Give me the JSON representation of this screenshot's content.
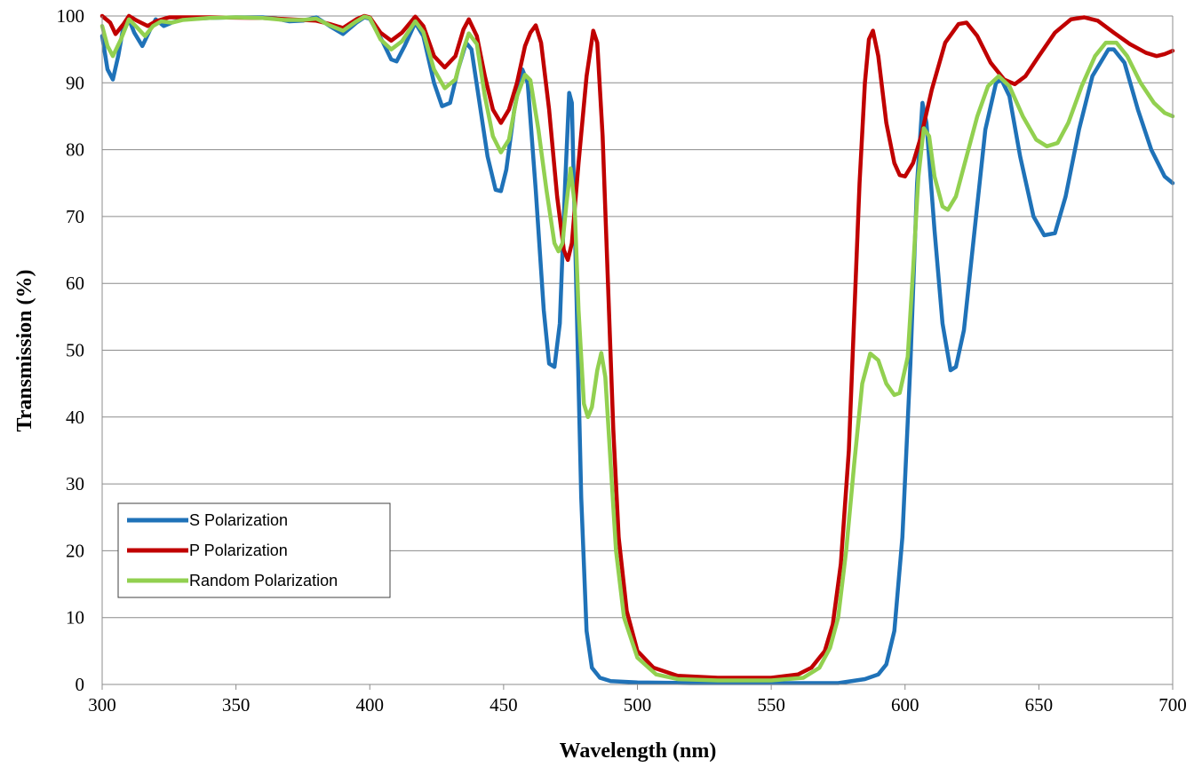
{
  "chart_data": {
    "type": "line",
    "title": "",
    "xlabel": "Wavelength (nm)",
    "ylabel": "Transmission (%)",
    "xlim": [
      300,
      700
    ],
    "ylim": [
      0,
      100
    ],
    "x_ticks": [
      "300",
      "350",
      "400",
      "450",
      "500",
      "550",
      "600",
      "650",
      "700"
    ],
    "y_ticks": [
      "0",
      "10",
      "20",
      "30",
      "40",
      "50",
      "60",
      "70",
      "80",
      "90",
      "100"
    ],
    "grid": "horizontal",
    "legend_position": "lower-left",
    "series": [
      {
        "name": "S Polarization",
        "color": "#1f72b8",
        "points": [
          [
            300,
            97
          ],
          [
            302,
            92
          ],
          [
            304,
            90.5
          ],
          [
            306,
            94
          ],
          [
            308,
            98.5
          ],
          [
            310,
            99.5
          ],
          [
            312,
            97.5
          ],
          [
            315,
            95.5
          ],
          [
            318,
            98
          ],
          [
            320,
            99.5
          ],
          [
            323,
            98.5
          ],
          [
            326,
            99
          ],
          [
            330,
            99.5
          ],
          [
            340,
            99.7
          ],
          [
            350,
            99.8
          ],
          [
            360,
            99.8
          ],
          [
            365,
            99.6
          ],
          [
            370,
            99.2
          ],
          [
            375,
            99.3
          ],
          [
            380,
            99.8
          ],
          [
            385,
            98.5
          ],
          [
            390,
            97.3
          ],
          [
            395,
            99
          ],
          [
            398,
            99.8
          ],
          [
            400,
            99.6
          ],
          [
            405,
            96
          ],
          [
            408,
            93.5
          ],
          [
            410,
            93.2
          ],
          [
            413,
            95.5
          ],
          [
            417,
            99
          ],
          [
            420,
            97
          ],
          [
            424,
            90
          ],
          [
            427,
            86.5
          ],
          [
            430,
            87
          ],
          [
            433,
            92
          ],
          [
            436,
            96
          ],
          [
            438,
            95
          ],
          [
            441,
            87
          ],
          [
            444,
            79
          ],
          [
            447,
            74
          ],
          [
            449,
            73.8
          ],
          [
            451,
            77
          ],
          [
            454,
            86
          ],
          [
            457,
            92
          ],
          [
            459,
            90
          ],
          [
            462,
            74
          ],
          [
            465,
            56
          ],
          [
            467,
            48
          ],
          [
            469,
            47.5
          ],
          [
            471,
            54
          ],
          [
            473,
            75
          ],
          [
            474.5,
            88.5
          ],
          [
            475.5,
            87
          ],
          [
            477,
            62
          ],
          [
            479,
            28
          ],
          [
            481,
            8
          ],
          [
            483,
            2.5
          ],
          [
            486,
            1
          ],
          [
            490,
            0.5
          ],
          [
            500,
            0.3
          ],
          [
            520,
            0.2
          ],
          [
            550,
            0.2
          ],
          [
            575,
            0.2
          ],
          [
            585,
            0.8
          ],
          [
            590,
            1.5
          ],
          [
            593,
            3
          ],
          [
            596,
            8
          ],
          [
            599,
            22
          ],
          [
            602,
            48
          ],
          [
            604.5,
            75
          ],
          [
            606.5,
            87
          ],
          [
            608,
            84
          ],
          [
            611,
            68
          ],
          [
            614,
            54
          ],
          [
            617,
            47
          ],
          [
            619,
            47.5
          ],
          [
            622,
            53
          ],
          [
            626,
            68
          ],
          [
            630,
            83
          ],
          [
            634,
            90
          ],
          [
            636,
            90.5
          ],
          [
            639,
            88
          ],
          [
            643,
            79
          ],
          [
            648,
            70
          ],
          [
            652,
            67.2
          ],
          [
            656,
            67.5
          ],
          [
            660,
            73
          ],
          [
            665,
            83
          ],
          [
            670,
            91
          ],
          [
            676,
            95
          ],
          [
            678,
            95
          ],
          [
            682,
            93
          ],
          [
            687,
            86
          ],
          [
            692,
            80
          ],
          [
            697,
            76
          ],
          [
            700,
            75
          ]
        ]
      },
      {
        "name": "P Polarization",
        "color": "#c00000",
        "points": [
          [
            300,
            100
          ],
          [
            303,
            99
          ],
          [
            305,
            97.3
          ],
          [
            308,
            98.8
          ],
          [
            310,
            100
          ],
          [
            313,
            99.3
          ],
          [
            317,
            98.5
          ],
          [
            320,
            99.2
          ],
          [
            325,
            99.8
          ],
          [
            340,
            99.8
          ],
          [
            360,
            99.7
          ],
          [
            370,
            99.5
          ],
          [
            380,
            99.3
          ],
          [
            385,
            98.8
          ],
          [
            390,
            98.2
          ],
          [
            395,
            99.5
          ],
          [
            398,
            100
          ],
          [
            400,
            99.8
          ],
          [
            404,
            97.5
          ],
          [
            408,
            96.3
          ],
          [
            412,
            97.5
          ],
          [
            417,
            99.9
          ],
          [
            420,
            98.5
          ],
          [
            424,
            94
          ],
          [
            428,
            92.3
          ],
          [
            432,
            94
          ],
          [
            435,
            98
          ],
          [
            437,
            99.5
          ],
          [
            440,
            97
          ],
          [
            443,
            91
          ],
          [
            446,
            86
          ],
          [
            449,
            84
          ],
          [
            452,
            86
          ],
          [
            455,
            90
          ],
          [
            458,
            95.5
          ],
          [
            460,
            97.5
          ],
          [
            462,
            98.6
          ],
          [
            464,
            96
          ],
          [
            467,
            86
          ],
          [
            470,
            73
          ],
          [
            472.5,
            65
          ],
          [
            474,
            63.5
          ],
          [
            475.5,
            66
          ],
          [
            478,
            78
          ],
          [
            481,
            91
          ],
          [
            483.5,
            97.8
          ],
          [
            485,
            96
          ],
          [
            487,
            82
          ],
          [
            489,
            60
          ],
          [
            491,
            38
          ],
          [
            493,
            22
          ],
          [
            496,
            11
          ],
          [
            500,
            5
          ],
          [
            506,
            2.5
          ],
          [
            515,
            1.3
          ],
          [
            530,
            1
          ],
          [
            550,
            1
          ],
          [
            560,
            1.5
          ],
          [
            565,
            2.5
          ],
          [
            570,
            5
          ],
          [
            573,
            9
          ],
          [
            576,
            18
          ],
          [
            579,
            35
          ],
          [
            581,
            55
          ],
          [
            583,
            75
          ],
          [
            585,
            90
          ],
          [
            586.5,
            96.5
          ],
          [
            588,
            97.8
          ],
          [
            590,
            94
          ],
          [
            593,
            84
          ],
          [
            596,
            78
          ],
          [
            598,
            76.2
          ],
          [
            600,
            76
          ],
          [
            603,
            78
          ],
          [
            606,
            82
          ],
          [
            610,
            89
          ],
          [
            615,
            96
          ],
          [
            620,
            98.8
          ],
          [
            623,
            99
          ],
          [
            627,
            97
          ],
          [
            632,
            93
          ],
          [
            637,
            90.5
          ],
          [
            641,
            89.8
          ],
          [
            645,
            91
          ],
          [
            650,
            94
          ],
          [
            656,
            97.5
          ],
          [
            662,
            99.5
          ],
          [
            667,
            99.8
          ],
          [
            672,
            99.3
          ],
          [
            678,
            97.5
          ],
          [
            684,
            95.8
          ],
          [
            690,
            94.5
          ],
          [
            694,
            94
          ],
          [
            697,
            94.3
          ],
          [
            700,
            94.8
          ]
        ]
      },
      {
        "name": "Random Polarization",
        "color": "#92d050",
        "points": [
          [
            300,
            98.5
          ],
          [
            302,
            95.5
          ],
          [
            304,
            94
          ],
          [
            307,
            96.5
          ],
          [
            310,
            99.5
          ],
          [
            313,
            98.3
          ],
          [
            316,
            97
          ],
          [
            319,
            98.5
          ],
          [
            322,
            99.2
          ],
          [
            326,
            99
          ],
          [
            330,
            99.4
          ],
          [
            340,
            99.7
          ],
          [
            350,
            99.8
          ],
          [
            360,
            99.7
          ],
          [
            368,
            99.4
          ],
          [
            375,
            99.4
          ],
          [
            380,
            99.6
          ],
          [
            385,
            98.6
          ],
          [
            390,
            97.8
          ],
          [
            395,
            99.2
          ],
          [
            398,
            99.9
          ],
          [
            400,
            99.7
          ],
          [
            404,
            96.5
          ],
          [
            408,
            95
          ],
          [
            412,
            96.2
          ],
          [
            417,
            99.2
          ],
          [
            420,
            97.6
          ],
          [
            424,
            92
          ],
          [
            428,
            89.2
          ],
          [
            432,
            90.5
          ],
          [
            435,
            95
          ],
          [
            437,
            97.4
          ],
          [
            440,
            95.8
          ],
          [
            443,
            88
          ],
          [
            446,
            82
          ],
          [
            449,
            79.6
          ],
          [
            452,
            81.5
          ],
          [
            455,
            88
          ],
          [
            458,
            91.2
          ],
          [
            460,
            90.4
          ],
          [
            463,
            83
          ],
          [
            466,
            74
          ],
          [
            469,
            66
          ],
          [
            470.5,
            64.8
          ],
          [
            472,
            66
          ],
          [
            473.5,
            72
          ],
          [
            475,
            77.2
          ],
          [
            476.5,
            72
          ],
          [
            478,
            56
          ],
          [
            480,
            42
          ],
          [
            481.5,
            40
          ],
          [
            483,
            41.5
          ],
          [
            485,
            47
          ],
          [
            486.5,
            49.6
          ],
          [
            488,
            46
          ],
          [
            490,
            33
          ],
          [
            492,
            20
          ],
          [
            495,
            10
          ],
          [
            500,
            4
          ],
          [
            507,
            1.5
          ],
          [
            515,
            0.8
          ],
          [
            530,
            0.6
          ],
          [
            550,
            0.6
          ],
          [
            562,
            1
          ],
          [
            568,
            2.5
          ],
          [
            572,
            5.5
          ],
          [
            575,
            10
          ],
          [
            578,
            20
          ],
          [
            581,
            33
          ],
          [
            584,
            45
          ],
          [
            587,
            49.5
          ],
          [
            590,
            48.5
          ],
          [
            593,
            45
          ],
          [
            596,
            43.3
          ],
          [
            598,
            43.6
          ],
          [
            601,
            49
          ],
          [
            603,
            62
          ],
          [
            605,
            76
          ],
          [
            607,
            83.2
          ],
          [
            609,
            82
          ],
          [
            611,
            76
          ],
          [
            614,
            71.5
          ],
          [
            616,
            71
          ],
          [
            619,
            73
          ],
          [
            623,
            79
          ],
          [
            627,
            85
          ],
          [
            631,
            89.5
          ],
          [
            635,
            91
          ],
          [
            639,
            89.5
          ],
          [
            644,
            85
          ],
          [
            649,
            81.5
          ],
          [
            653,
            80.5
          ],
          [
            657,
            81
          ],
          [
            661,
            84
          ],
          [
            666,
            89.5
          ],
          [
            671,
            94
          ],
          [
            675,
            96
          ],
          [
            679,
            96
          ],
          [
            683,
            94
          ],
          [
            688,
            90
          ],
          [
            693,
            87
          ],
          [
            697,
            85.5
          ],
          [
            700,
            85
          ]
        ]
      }
    ]
  }
}
